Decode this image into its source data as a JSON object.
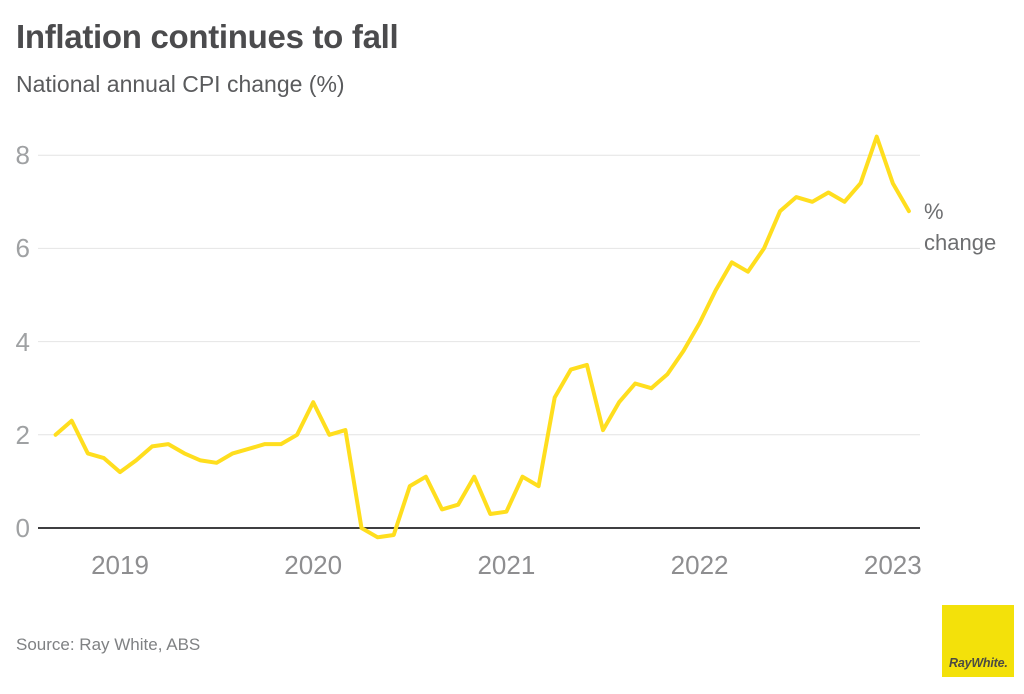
{
  "header": {
    "title": "Inflation continues to fall",
    "subtitle": "National annual CPI change (%)"
  },
  "chart_data": {
    "type": "line",
    "title": "Inflation continues to fall",
    "subtitle": "National annual CPI change (%)",
    "right_axis_label": "% change",
    "grid": true,
    "legend": "none",
    "x_tick_labels": [
      "2019",
      "2020",
      "2021",
      "2022",
      "2023"
    ],
    "y_ticks": [
      0,
      2,
      4,
      6,
      8
    ],
    "ylim": [
      -0.6,
      8.9
    ],
    "series": [
      {
        "name": "National annual CPI change (%)",
        "color": "#FFDE1E",
        "months": [
          "Sep 2018",
          "Oct 2018",
          "Nov 2018",
          "Dec 2018",
          "Jan 2019",
          "Feb 2019",
          "Mar 2019",
          "Apr 2019",
          "May 2019",
          "Jun 2019",
          "Jul 2019",
          "Aug 2019",
          "Sep 2019",
          "Oct 2019",
          "Nov 2019",
          "Dec 2019",
          "Jan 2020",
          "Feb 2020",
          "Mar 2020",
          "Apr 2020",
          "May 2020",
          "Jun 2020",
          "Jul 2020",
          "Aug 2020",
          "Sep 2020",
          "Oct 2020",
          "Nov 2020",
          "Dec 2020",
          "Jan 2021",
          "Feb 2021",
          "Mar 2021",
          "Apr 2021",
          "May 2021",
          "Jun 2021",
          "Jul 2021",
          "Aug 2021",
          "Sep 2021",
          "Oct 2021",
          "Nov 2021",
          "Dec 2021",
          "Jan 2022",
          "Feb 2022",
          "Mar 2022",
          "Apr 2022",
          "May 2022",
          "Jun 2022",
          "Jul 2022",
          "Aug 2022",
          "Sep 2022",
          "Oct 2022",
          "Nov 2022",
          "Dec 2022",
          "Jan 2023",
          "Feb 2023"
        ],
        "values": [
          2.0,
          2.3,
          1.6,
          1.5,
          1.2,
          1.45,
          1.75,
          1.8,
          1.6,
          1.45,
          1.4,
          1.6,
          1.7,
          1.8,
          1.8,
          2.0,
          2.7,
          2.0,
          2.1,
          0.0,
          -0.2,
          -0.15,
          0.9,
          1.1,
          0.4,
          0.5,
          1.1,
          0.3,
          0.35,
          1.1,
          0.9,
          2.8,
          3.4,
          3.5,
          2.1,
          2.7,
          3.1,
          3.0,
          3.3,
          3.8,
          4.4,
          5.1,
          5.7,
          5.5,
          6.0,
          6.8,
          7.1,
          7.0,
          7.2,
          7.0,
          7.4,
          8.4,
          7.4,
          6.8
        ]
      }
    ]
  },
  "footer": {
    "source": "Source: Ray White, ABS"
  },
  "logo": {
    "text": "RayWhite."
  },
  "colors": {
    "line": "#FFDE1E",
    "grid": "#E4E4E4",
    "axis_zero_line": "#3F3F41",
    "y_tick_label": "#9FA1A3",
    "x_tick_label": "#8E8E90",
    "title": "#4B4B4D",
    "subtitle": "#5A5B5D",
    "right_label": "#6E6F71",
    "source": "#7F8183",
    "logo_bg": "#F3E10A",
    "logo_text": "#4B4B43"
  }
}
